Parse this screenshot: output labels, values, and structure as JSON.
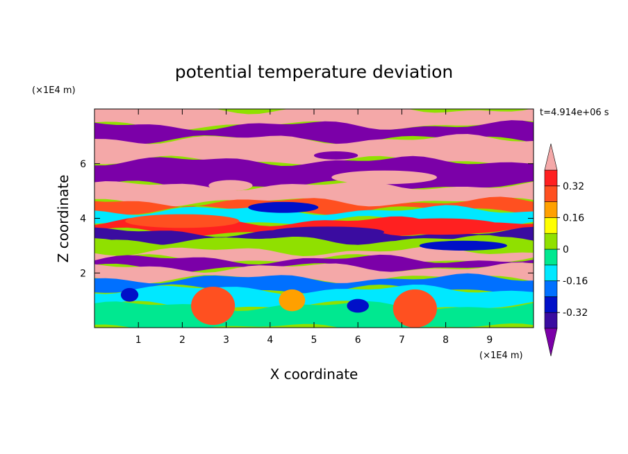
{
  "chart_data": {
    "type": "heatmap",
    "title": "potential temperature deviation",
    "xlabel": "X coordinate",
    "ylabel": "Z coordinate",
    "x_unit": "(×1E4 m)",
    "y_unit": "(×1E4 m)",
    "time_label": "t=4.914e+06 s",
    "xlim": [
      0,
      10
    ],
    "ylim": [
      0,
      8
    ],
    "x_ticks": [
      1,
      2,
      3,
      4,
      5,
      6,
      7,
      8,
      9
    ],
    "y_ticks": [
      2,
      4,
      6
    ],
    "x_tick_labels": [
      "1",
      "2",
      "3",
      "4",
      "5",
      "6",
      "7",
      "8",
      "9"
    ],
    "y_tick_labels": [
      "2",
      "4",
      "6"
    ],
    "colorbar": {
      "levels": [
        -0.4,
        -0.32,
        -0.24,
        -0.16,
        -0.08,
        0,
        0.08,
        0.16,
        0.24,
        0.32,
        0.4
      ],
      "tick_values": [
        -0.32,
        -0.16,
        0,
        0.16,
        0.32
      ],
      "tick_labels": [
        "-0.32",
        "-0.16",
        "0",
        "0.16",
        "0.32"
      ],
      "colors": [
        "#7b00a8",
        "#3a0ca0",
        "#0010c8",
        "#0070ff",
        "#00e8ff",
        "#00e890",
        "#90e000",
        "#ffff00",
        "#ffa000",
        "#ff5020",
        "#ff2020",
        "#f4a8a8"
      ],
      "extend": "both"
    },
    "bands": [
      {
        "z0": 7.4,
        "z1": 8.0,
        "value": 0.45
      },
      {
        "z0": 6.9,
        "z1": 7.4,
        "value": -0.45
      },
      {
        "z0": 6.1,
        "z1": 6.9,
        "value": 0.45
      },
      {
        "z0": 5.2,
        "z1": 6.1,
        "value": -0.45
      },
      {
        "z0": 4.6,
        "z1": 5.2,
        "value": 0.45
      },
      {
        "z0": 4.3,
        "z1": 4.6,
        "value": 0.3
      },
      {
        "z0": 3.9,
        "z1": 4.3,
        "value": -0.1
      },
      {
        "z0": 3.5,
        "z1": 3.9,
        "value": 0.35
      },
      {
        "z0": 3.2,
        "z1": 3.5,
        "value": -0.4
      },
      {
        "z0": 2.8,
        "z1": 3.2,
        "value": 0.05
      },
      {
        "z0": 2.5,
        "z1": 2.8,
        "value": 0.45
      },
      {
        "z0": 2.2,
        "z1": 2.5,
        "value": -0.45
      },
      {
        "z0": 1.8,
        "z1": 2.2,
        "value": 0.45
      },
      {
        "z0": 1.4,
        "z1": 1.8,
        "value": -0.2
      },
      {
        "z0": 0.8,
        "z1": 1.4,
        "value": -0.1
      },
      {
        "z0": 0.0,
        "z1": 0.8,
        "value": -0.05
      }
    ],
    "features": [
      {
        "x": 7.9,
        "z": 3.7,
        "rx": 1.4,
        "rz": 0.3,
        "value": 0.32
      },
      {
        "x": 2.0,
        "z": 3.9,
        "rx": 1.3,
        "rz": 0.25,
        "value": 0.3
      },
      {
        "x": 4.3,
        "z": 4.4,
        "rx": 0.8,
        "rz": 0.2,
        "value": -0.3
      },
      {
        "x": 5.3,
        "z": 3.5,
        "rx": 1.3,
        "rz": 0.2,
        "value": -0.38
      },
      {
        "x": 8.4,
        "z": 3.0,
        "rx": 1.0,
        "rz": 0.18,
        "value": -0.3
      },
      {
        "x": 2.7,
        "z": 0.8,
        "rx": 0.5,
        "rz": 0.7,
        "value": 0.3
      },
      {
        "x": 7.3,
        "z": 0.7,
        "rx": 0.5,
        "rz": 0.7,
        "value": 0.3
      },
      {
        "x": 6.0,
        "z": 0.8,
        "rx": 0.25,
        "rz": 0.25,
        "value": -0.3
      },
      {
        "x": 0.8,
        "z": 1.2,
        "rx": 0.2,
        "rz": 0.25,
        "value": -0.3
      },
      {
        "x": 4.5,
        "z": 1.0,
        "rx": 0.3,
        "rz": 0.4,
        "value": 0.2
      },
      {
        "x": 3.1,
        "z": 5.2,
        "rx": 0.5,
        "rz": 0.2,
        "value": 0.45
      },
      {
        "x": 5.5,
        "z": 6.3,
        "rx": 0.5,
        "rz": 0.15,
        "value": -0.45
      },
      {
        "x": 6.6,
        "z": 5.5,
        "rx": 1.2,
        "rz": 0.25,
        "value": 0.45
      }
    ]
  }
}
